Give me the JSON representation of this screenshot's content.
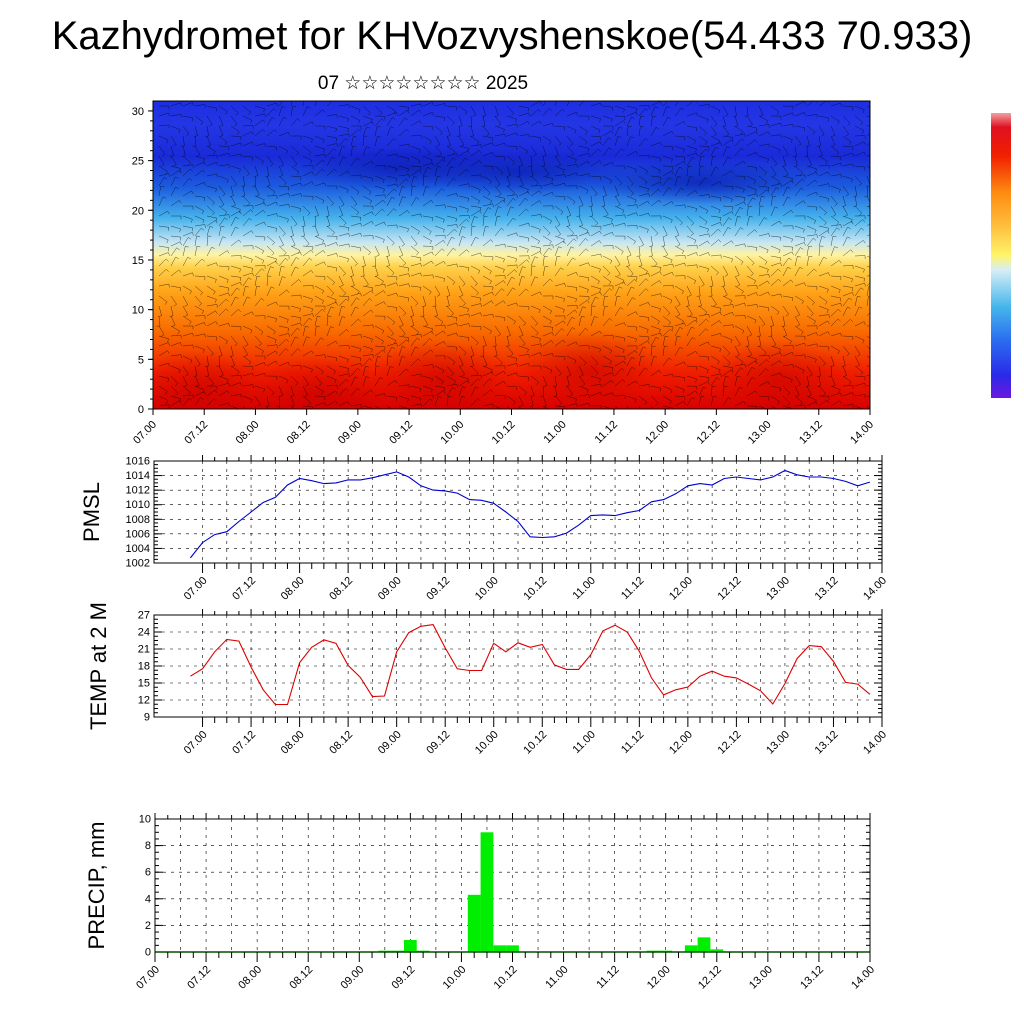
{
  "title": "Kazhydromet for KHVozvyshenskoe(54.433 70.933)",
  "subtitle": "07 ☆☆☆☆☆☆☆☆ 2025",
  "chart_data": [
    {
      "type": "heatmap",
      "ylim": [
        0,
        31
      ],
      "yticks": [
        "0",
        "5",
        "10",
        "15",
        "20",
        "25",
        "30"
      ],
      "xticks": [
        "07.00",
        "07.12",
        "08.00",
        "08.12",
        "09.00",
        "09.12",
        "10.00",
        "10.12",
        "11.00",
        "11.12",
        "12.00",
        "12.12",
        "13.00",
        "13.12",
        "14.00"
      ],
      "overlay": "wind barbs",
      "colorbar": "blue-to-red"
    },
    {
      "type": "line",
      "ylabel": "PMSL",
      "ylim": [
        1002,
        1016
      ],
      "yticks": [
        "1002",
        "1004",
        "1006",
        "1008",
        "1010",
        "1012",
        "1014",
        "1016"
      ],
      "xticks": [
        "07.00",
        "07.12",
        "08.00",
        "08.12",
        "09.00",
        "09.12",
        "10.00",
        "10.12",
        "11.00",
        "11.12",
        "12.00",
        "12.12",
        "13.00",
        "13.12",
        "14.00"
      ],
      "x_hours": [
        -3,
        0,
        3,
        6,
        9,
        12,
        15,
        18,
        21,
        24,
        27,
        30,
        33,
        36,
        39,
        42,
        45,
        48,
        51,
        54,
        57,
        60,
        63,
        66,
        69,
        72,
        75,
        78,
        81,
        84,
        87,
        90,
        93,
        96,
        99,
        102,
        105,
        108,
        111,
        114,
        117,
        120,
        123,
        126,
        129,
        132,
        135,
        138,
        141,
        144,
        147,
        150,
        153,
        156,
        159,
        162,
        165
      ],
      "color": "#0000cc",
      "series": [
        {
          "values": [
            1002.7,
            1004.8,
            1005.9,
            1006.3,
            1007.7,
            1009.0,
            1010.3,
            1011.0,
            1012.7,
            1013.6,
            1013.3,
            1012.9,
            1013.0,
            1013.4,
            1013.4,
            1013.7,
            1014.1,
            1014.5,
            1013.8,
            1012.6,
            1012.0,
            1011.9,
            1011.6,
            1010.7,
            1010.6,
            1010.2,
            1009.0,
            1007.7,
            1005.6,
            1005.5,
            1005.6,
            1006.1,
            1007.2,
            1008.5,
            1008.6,
            1008.5,
            1008.9,
            1009.2,
            1010.4,
            1010.7,
            1011.5,
            1012.6,
            1012.9,
            1012.7,
            1013.6,
            1013.8,
            1013.6,
            1013.4,
            1013.8,
            1014.7,
            1014.1,
            1013.8,
            1013.8,
            1013.6,
            1013.2,
            1012.6,
            1013.1
          ]
        }
      ]
    },
    {
      "type": "line",
      "ylabel": "TEMP at 2 M",
      "ylim": [
        9,
        27
      ],
      "yticks": [
        "9",
        "12",
        "15",
        "18",
        "21",
        "24",
        "27"
      ],
      "xticks": [
        "07.00",
        "07.12",
        "08.00",
        "08.12",
        "09.00",
        "09.12",
        "10.00",
        "10.12",
        "11.00",
        "11.12",
        "12.00",
        "12.12",
        "13.00",
        "13.12",
        "14.00"
      ],
      "x_hours": [
        -3,
        0,
        3,
        6,
        9,
        12,
        15,
        18,
        21,
        24,
        27,
        30,
        33,
        36,
        39,
        42,
        45,
        48,
        51,
        54,
        57,
        60,
        63,
        66,
        69,
        72,
        75,
        78,
        81,
        84,
        87,
        90,
        93,
        96,
        99,
        102,
        105,
        108,
        111,
        114,
        117,
        120,
        123,
        126,
        129,
        132,
        135,
        138,
        141,
        144,
        147,
        150,
        153,
        156,
        159,
        162,
        165
      ],
      "color": "#dd0000",
      "series": [
        {
          "values": [
            16.2,
            17.5,
            20.5,
            22.7,
            22.4,
            17.8,
            13.8,
            11.2,
            11.2,
            18.6,
            21.3,
            22.6,
            22.0,
            18.1,
            16.0,
            12.6,
            12.7,
            20.5,
            23.9,
            25.0,
            25.3,
            21.2,
            17.5,
            17.2,
            17.2,
            22.0,
            20.5,
            22.1,
            21.3,
            21.8,
            18.2,
            17.4,
            17.4,
            20.0,
            24.2,
            25.2,
            24.0,
            20.6,
            15.9,
            12.9,
            13.8,
            14.3,
            16.2,
            17.1,
            16.2,
            15.9,
            14.8,
            13.6,
            11.3,
            14.9,
            19.3,
            21.6,
            21.4,
            18.8,
            15.1,
            14.8,
            13.0
          ]
        }
      ]
    },
    {
      "type": "bar",
      "ylabel": "PRECIP, mm",
      "ylim": [
        0,
        10
      ],
      "yticks": [
        "0",
        "2",
        "4",
        "6",
        "8",
        "10"
      ],
      "xticks": [
        "07.00",
        "07.12",
        "08.00",
        "08.12",
        "09.00",
        "09.12",
        "10.00",
        "10.12",
        "11.00",
        "11.12",
        "12.00",
        "12.12",
        "13.00",
        "13.12",
        "14.00"
      ],
      "bar_width_hours": 3,
      "color": "#00ee00",
      "bars": [
        {
          "hour": 54,
          "value": 0.1
        },
        {
          "hour": 57,
          "value": 0.1
        },
        {
          "hour": 60,
          "value": 0.9
        },
        {
          "hour": 63,
          "value": 0.1
        },
        {
          "hour": 75,
          "value": 4.3
        },
        {
          "hour": 78,
          "value": 9.0
        },
        {
          "hour": 81,
          "value": 0.5
        },
        {
          "hour": 84,
          "value": 0.5
        },
        {
          "hour": 117,
          "value": 0.1
        },
        {
          "hour": 120,
          "value": 0.1
        },
        {
          "hour": 126,
          "value": 0.5
        },
        {
          "hour": 129,
          "value": 1.1
        },
        {
          "hour": 132,
          "value": 0.2
        }
      ]
    }
  ]
}
